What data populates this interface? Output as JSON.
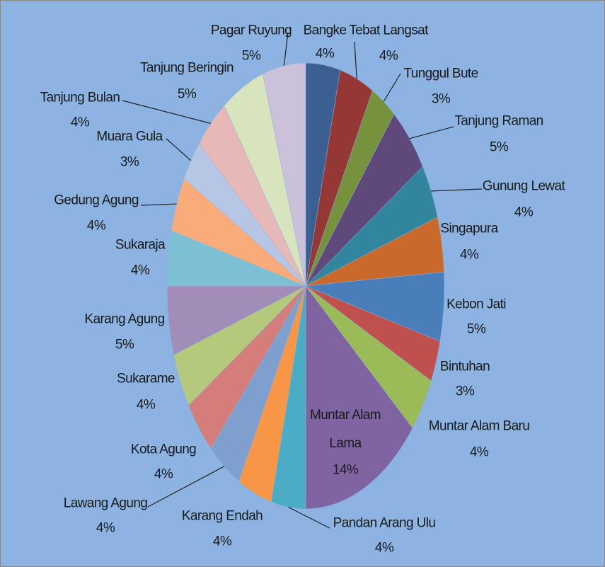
{
  "chart_data": {
    "type": "pie",
    "categories": [
      "Bangke",
      "Tebat Langsat",
      "Tunggul Bute",
      "Tanjung Raman",
      "Gunung Lewat",
      "Singapura",
      "Kebon Jati",
      "Bintuhan",
      "Muntar Alam Baru",
      "Muntar Alam Lama",
      "Pandan Arang Ulu",
      "Karang Endah",
      "Lawang Agung",
      "Kota Agung",
      "Sukarame",
      "Karang Agung",
      "Sukaraja",
      "Gedung Agung",
      "Muara Gula",
      "Tanjung Bulan",
      "Tanjung Beringin",
      "Pagar Ruyung"
    ],
    "values": [
      4,
      4,
      3,
      5,
      4,
      4,
      5,
      3,
      4,
      14,
      4,
      4,
      4,
      4,
      4,
      5,
      4,
      4,
      3,
      4,
      5,
      5
    ],
    "value_labels": [
      "4%",
      "4%",
      "3%",
      "5%",
      "4%",
      "4%",
      "5%",
      "3%",
      "4%",
      "14%",
      "4%",
      "4%",
      "4%",
      "4%",
      "4%",
      "5%",
      "4%",
      "4%",
      "3%",
      "4%",
      "5%",
      "5%"
    ],
    "colors": [
      "#3c5f91",
      "#953735",
      "#76923c",
      "#5f497a",
      "#31859c",
      "#c9692b",
      "#4a7ebb",
      "#c0504d",
      "#9bbb59",
      "#8064a2",
      "#4bacc6",
      "#f79646",
      "#7f9fcf",
      "#d47d7a",
      "#b4c97c",
      "#a28cb8",
      "#7dc0d4",
      "#f9ac7a",
      "#b7c6e4",
      "#e6b9b8",
      "#d7e4bd",
      "#ccc1da"
    ]
  }
}
